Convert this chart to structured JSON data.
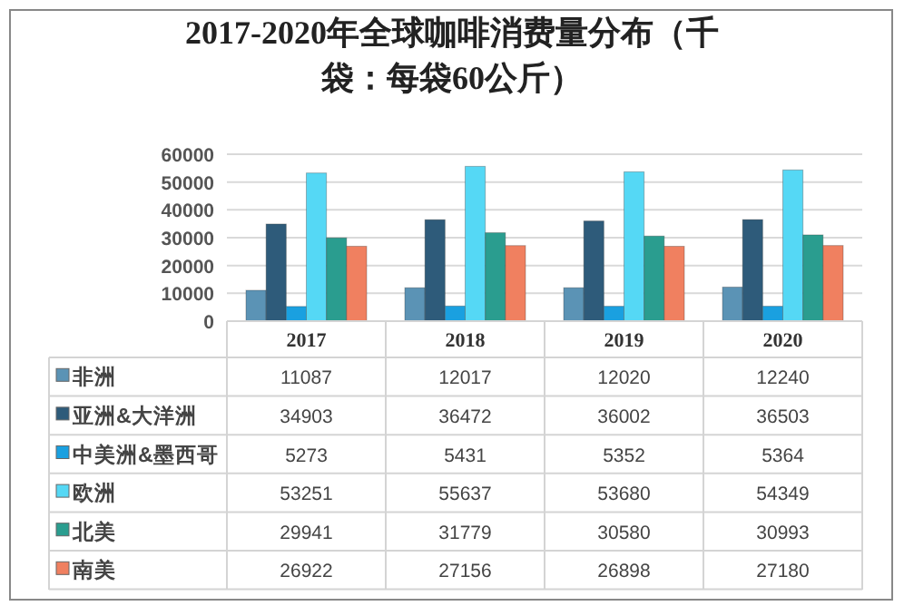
{
  "chart_data": {
    "type": "bar",
    "title": "2017-2020年全球咖啡消费量分布（千袋：每袋60公斤）",
    "categories": [
      "2017",
      "2018",
      "2019",
      "2020"
    ],
    "series": [
      {
        "name": "非洲",
        "color": "#5b93b5",
        "values": [
          11087,
          12017,
          12020,
          12240
        ]
      },
      {
        "name": "亚洲&大洋洲",
        "color": "#2e5b7a",
        "values": [
          34903,
          36472,
          36002,
          36503
        ]
      },
      {
        "name": "中美洲&墨西哥",
        "color": "#1aa0e0",
        "values": [
          5273,
          5431,
          5352,
          5364
        ]
      },
      {
        "name": "欧洲",
        "color": "#55d8f5",
        "values": [
          53251,
          55637,
          53680,
          54349
        ]
      },
      {
        "name": "北美",
        "color": "#2a9d8f",
        "values": [
          29941,
          31779,
          30580,
          30993
        ]
      },
      {
        "name": "南美",
        "color": "#f08060",
        "values": [
          26922,
          27156,
          26898,
          27180
        ]
      }
    ],
    "ylim": [
      0,
      60000
    ],
    "yticks": [
      0,
      10000,
      20000,
      30000,
      40000,
      50000,
      60000
    ],
    "grid": "y",
    "data_labels": true,
    "legend": "bottom left"
  }
}
